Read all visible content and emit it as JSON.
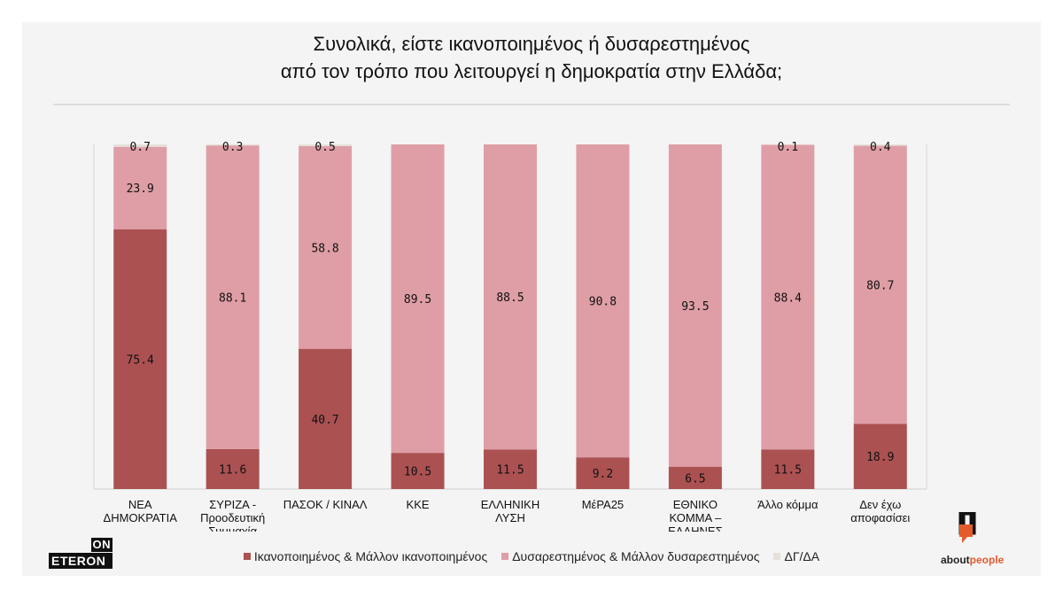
{
  "chart_data": {
    "type": "bar",
    "stacked": true,
    "title_line1": "Συνολικά, είστε ικανοποιημένος ή δυσαρεστημένος",
    "title_line2": "από τον τρόπο που λειτουργεί η δημοκρατία στην Ελλάδα;",
    "categories": [
      [
        "ΝΕΑ",
        "ΔΗΜΟΚΡΑΤΙΑ"
      ],
      [
        "ΣΥΡΙΖΑ -",
        "Προοδευτική",
        "Συμμαχία"
      ],
      [
        "ΠΑΣΟΚ / ΚΙΝΑΛ"
      ],
      [
        "ΚΚΕ"
      ],
      [
        "ΕΛΛΗΝΙΚΗ",
        "ΛΥΣΗ"
      ],
      [
        "ΜέΡΑ25"
      ],
      [
        "ΕΘΝΙΚΟ",
        "ΚΟΜΜΑ –",
        "ΕΛΛΗΝΕΣ"
      ],
      [
        "Άλλο κόμμα"
      ],
      [
        "Δεν έχω",
        "αποφασίσει"
      ]
    ],
    "series": [
      {
        "name": "Ικανοποιημένος & Μάλλον ικανοποιημένος",
        "color": "#ab5152",
        "values": [
          75.4,
          11.6,
          40.7,
          10.5,
          11.5,
          9.2,
          6.5,
          11.5,
          18.9
        ]
      },
      {
        "name": "Δυσαρεστημένος & Μάλλον δυσαρεστημένος",
        "color": "#df9ea6",
        "values": [
          23.9,
          88.1,
          58.8,
          89.5,
          88.5,
          90.8,
          93.5,
          88.4,
          80.7
        ]
      },
      {
        "name": "ΔΓ/ΔΑ",
        "color": "#e5e0da",
        "values": [
          0.7,
          0.3,
          0.5,
          null,
          null,
          null,
          null,
          0.1,
          0.4
        ]
      }
    ],
    "ylim": [
      0,
      100
    ],
    "legend_position": "bottom"
  },
  "logos": {
    "left_top": "ON",
    "left_bottom": "ETERON",
    "right_prefix": "about",
    "right_suffix": "people",
    "right_accent_color": "#e35b2b"
  }
}
